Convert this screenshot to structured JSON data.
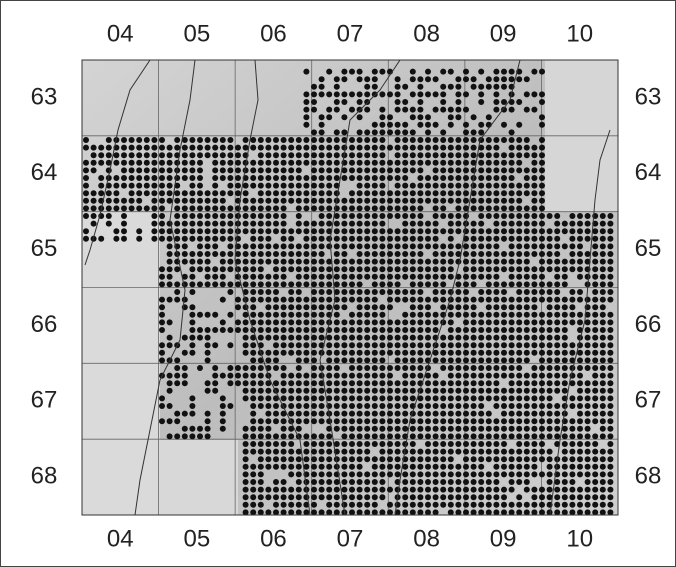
{
  "map": {
    "top_labels": [
      "04",
      "05",
      "06",
      "07",
      "08",
      "09",
      "10"
    ],
    "bottom_labels": [
      "04",
      "05",
      "06",
      "07",
      "08",
      "09",
      "10"
    ],
    "left_labels": [
      "63",
      "64",
      "65",
      "66",
      "67",
      "68"
    ],
    "right_labels": [
      "63",
      "64",
      "65",
      "66",
      "67",
      "68"
    ]
  }
}
